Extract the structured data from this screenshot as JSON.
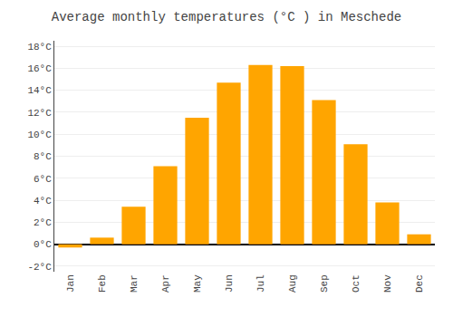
{
  "chart_data": {
    "type": "bar",
    "title": "Average monthly temperatures (°C ) in Meschede",
    "categories": [
      "Jan",
      "Feb",
      "Mar",
      "Apr",
      "May",
      "Jun",
      "Jul",
      "Aug",
      "Sep",
      "Oct",
      "Nov",
      "Dec"
    ],
    "values": [
      -0.3,
      0.6,
      3.4,
      7.1,
      11.5,
      14.7,
      16.3,
      16.2,
      13.1,
      9.1,
      3.8,
      0.9
    ],
    "color": "#FFA500",
    "ylim": [
      -2.5,
      18.5
    ],
    "yticks": [
      {
        "value": -2,
        "label": "-2°C"
      },
      {
        "value": 0,
        "label": "0°C"
      },
      {
        "value": 2,
        "label": "2°C"
      },
      {
        "value": 4,
        "label": "4°C"
      },
      {
        "value": 6,
        "label": "6°C"
      },
      {
        "value": 8,
        "label": "8°C"
      },
      {
        "value": 10,
        "label": "10°C"
      },
      {
        "value": 12,
        "label": "12°C"
      },
      {
        "value": 14,
        "label": "14°C"
      },
      {
        "value": 16,
        "label": "16°C"
      },
      {
        "value": 18,
        "label": "18°C"
      }
    ],
    "grid": true
  }
}
